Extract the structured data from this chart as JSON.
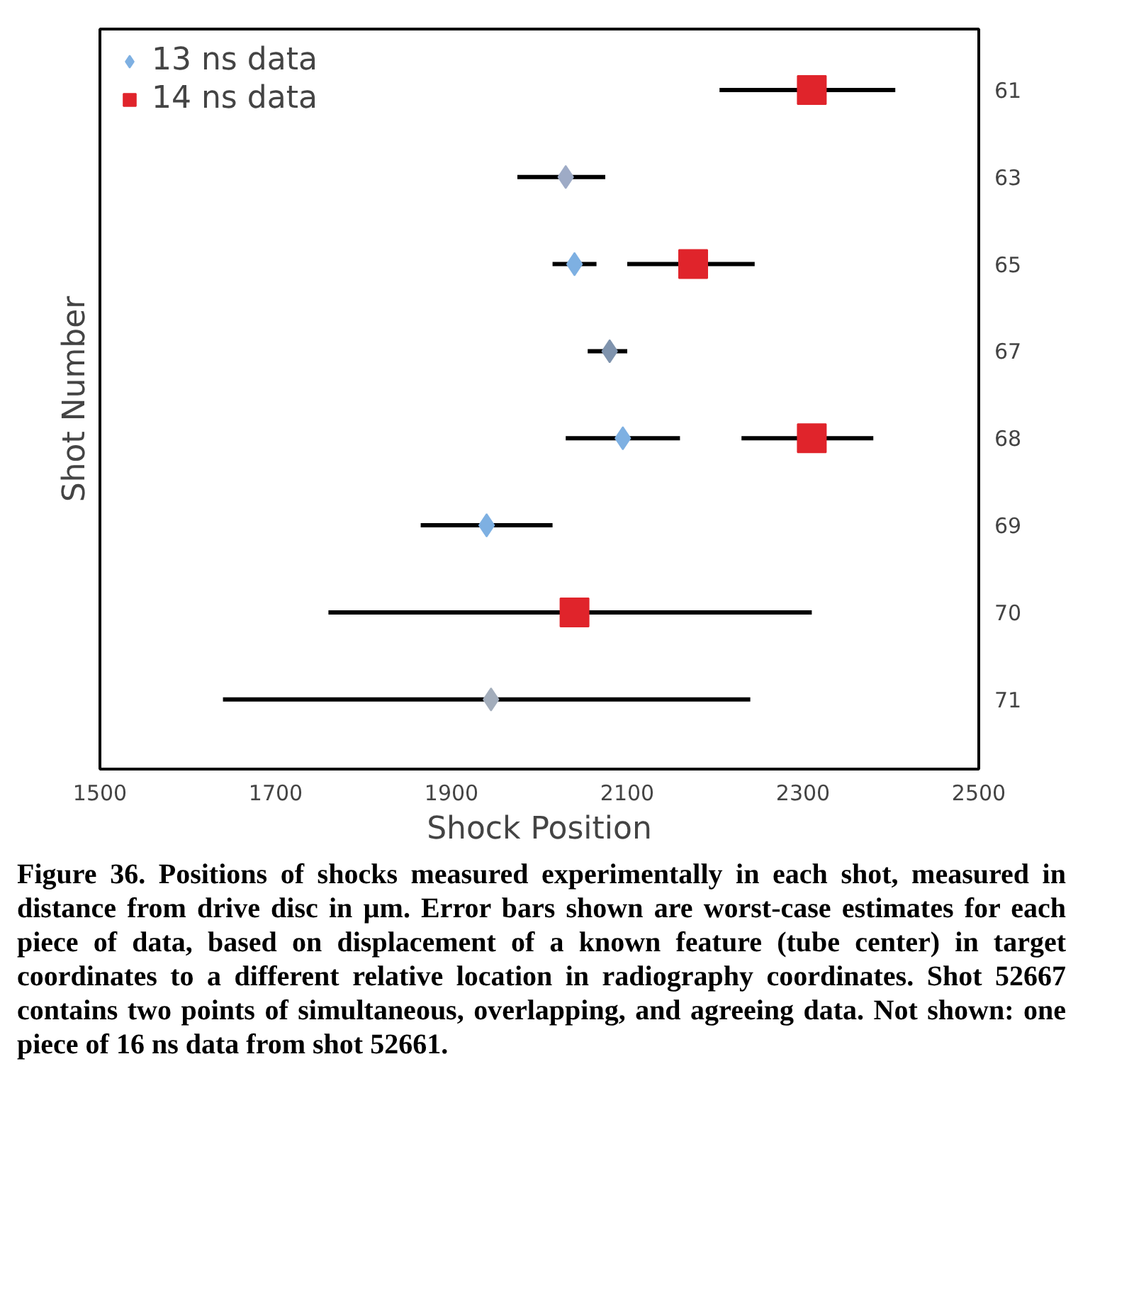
{
  "chart_data": {
    "type": "scatter",
    "orientation": "horizontal",
    "xlabel": "Shock Position",
    "ylabel": "Shot Number",
    "categories": [
      "61",
      "63",
      "65",
      "67",
      "68",
      "69",
      "70",
      "71"
    ],
    "xlim": [
      1500,
      2500
    ],
    "xticks": [
      1500,
      1700,
      1900,
      2100,
      2300,
      2500
    ],
    "grid": false,
    "legend": "top left",
    "series": [
      {
        "name": "13 ns data",
        "marker": "diamond",
        "color": "#7eb0e2",
        "colors": [
          null,
          "#9eabc6",
          null,
          "#7f93ad",
          null,
          null,
          null,
          "#a3adbb"
        ],
        "values": [
          null,
          2030,
          2040,
          2080,
          2095,
          1940,
          null,
          1945
        ],
        "errors": [
          null,
          [
            1975,
            2075
          ],
          [
            2015,
            2065
          ],
          [
            2055,
            2100
          ],
          [
            2030,
            2160
          ],
          [
            1865,
            2015
          ],
          null,
          [
            1640,
            2240
          ]
        ]
      },
      {
        "name": "14 ns data",
        "marker": "square",
        "color": "#e0242b",
        "values": [
          2310,
          null,
          2175,
          null,
          2310,
          null,
          2040,
          null
        ],
        "errors": [
          [
            2205,
            2405
          ],
          null,
          [
            2100,
            2245
          ],
          null,
          [
            2230,
            2380
          ],
          null,
          [
            1760,
            2310
          ],
          null
        ]
      }
    ],
    "annotations": [
      "Figure 36. Positions of shocks measured experimentally in each shot, measured in distance from drive disc in µm. Error bars shown are worst-case estimates for each piece of data, based on displacement of a known feature (tube center) in target coordinates to a different relative location in radiography coordinates. Shot 52667 contains two points of simultaneous, overlapping, and agreeing data. Not shown: one piece of 16 ns data from shot 52661."
    ]
  }
}
